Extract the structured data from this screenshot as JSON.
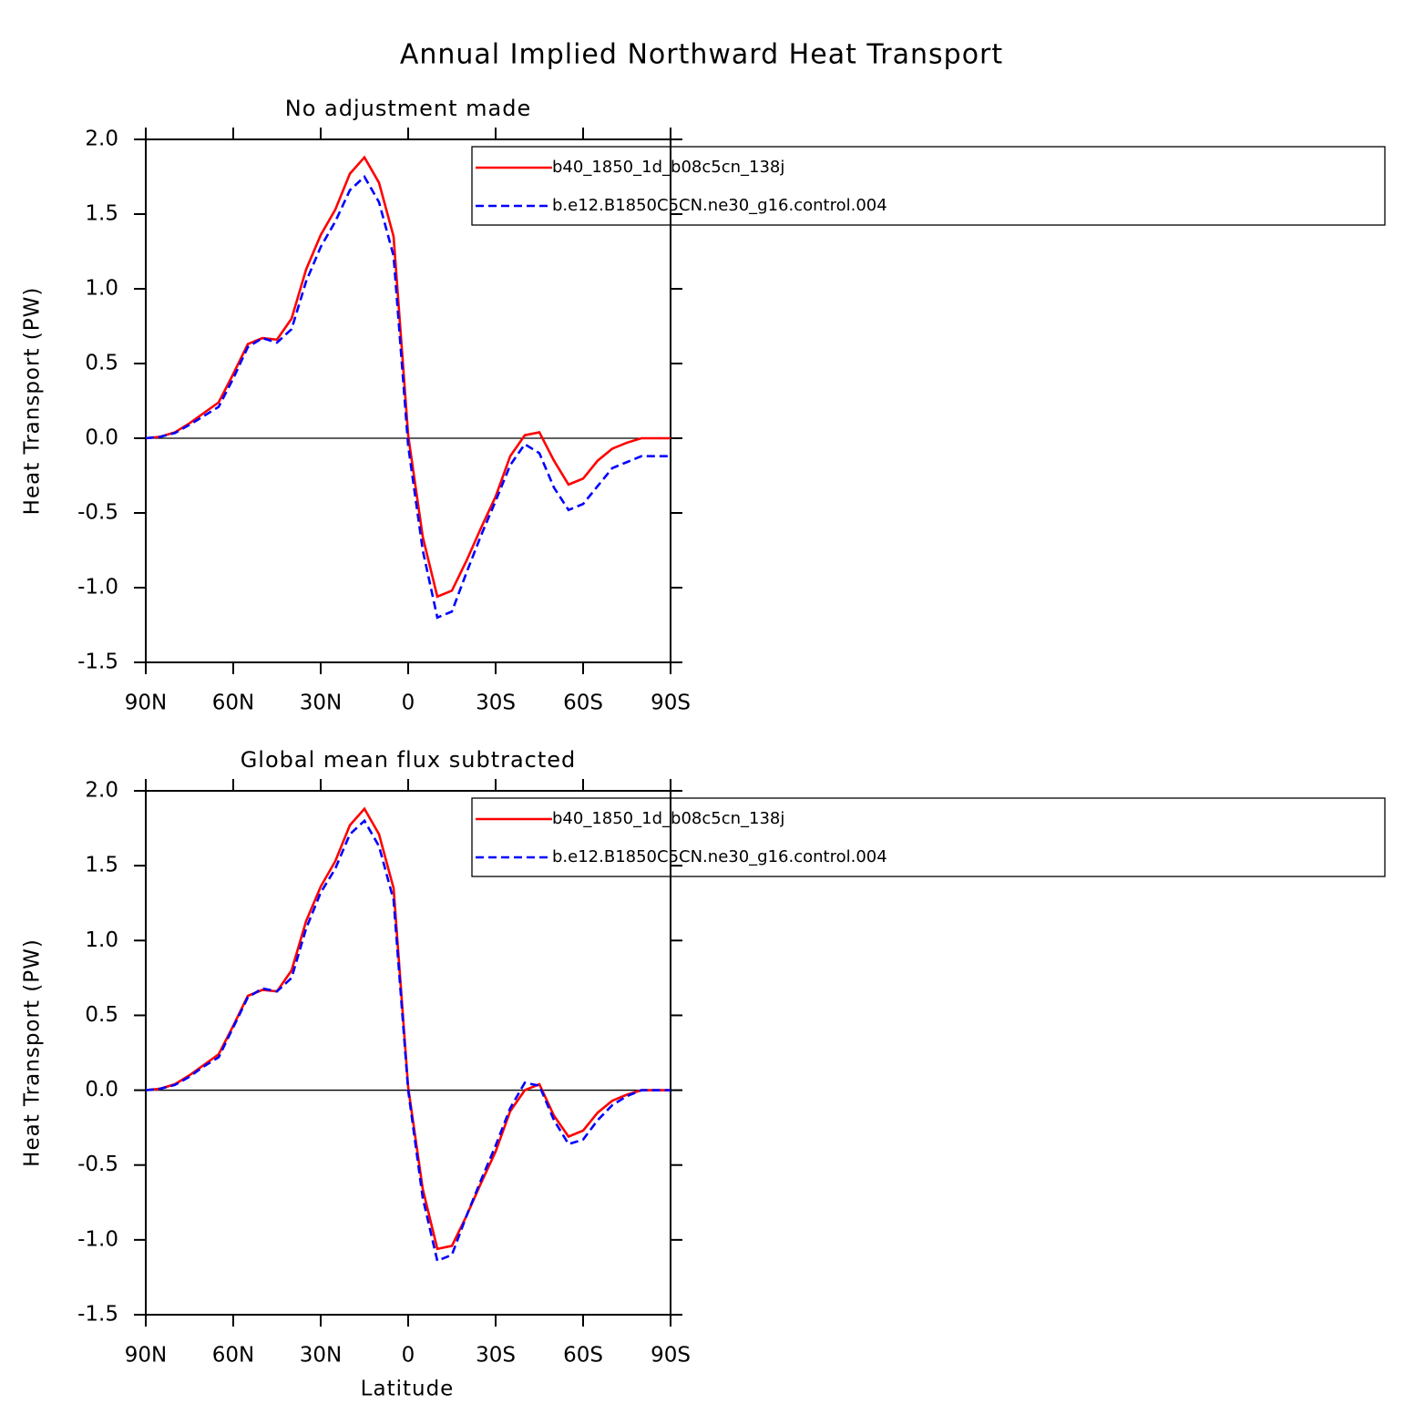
{
  "title": "Annual Implied Northward Heat Transport",
  "chart_data": [
    {
      "type": "line",
      "title": "No adjustment made",
      "ylabel": "Heat Transport (PW)",
      "x": [
        90,
        85,
        80,
        75,
        70,
        65,
        60,
        55,
        50,
        45,
        40,
        35,
        30,
        25,
        20,
        15,
        10,
        5,
        0,
        -5,
        -10,
        -15,
        -20,
        -25,
        -30,
        -35,
        -40,
        -45,
        -50,
        -55,
        -60,
        -65,
        -70,
        -75,
        -80,
        -85,
        -90
      ],
      "xlim": [
        90,
        -90
      ],
      "xticks": [
        {
          "value": 90,
          "label": "90N"
        },
        {
          "value": 60,
          "label": "60N"
        },
        {
          "value": 30,
          "label": "30N"
        },
        0,
        {
          "value": -30,
          "label": "30S"
        },
        {
          "value": -60,
          "label": "60S"
        },
        {
          "value": -90,
          "label": "90S"
        }
      ],
      "ylim": [
        -1.5,
        2.0
      ],
      "yticks": [
        {
          "value": 2,
          "label": "2.0"
        },
        1.5,
        {
          "value": 1,
          "label": "1.0"
        },
        0.5,
        {
          "value": 0,
          "label": "0.0"
        },
        -0.5,
        {
          "value": -1,
          "label": "-1.0"
        },
        -1.5
      ],
      "zero_line": true,
      "series": [
        {
          "name": "b40_1850_1d_b08c5cn_138j",
          "color": "#ff0000",
          "dash": "solid",
          "values": [
            0,
            0.01,
            0.04,
            0.1,
            0.17,
            0.24,
            0.43,
            0.63,
            0.67,
            0.66,
            0.8,
            1.13,
            1.36,
            1.53,
            1.77,
            1.88,
            1.71,
            1.35,
            0.02,
            -0.66,
            -1.06,
            -1.02,
            -0.82,
            -0.6,
            -0.39,
            -0.12,
            0.02,
            0.04,
            -0.15,
            -0.31,
            -0.27,
            -0.15,
            -0.07,
            -0.03,
            0,
            0,
            0
          ]
        },
        {
          "name": "b.e12.B1850C5CN.ne30_g16.control.004",
          "color": "#0000ff",
          "dash": "dashed",
          "values": [
            0,
            0.01,
            0.035,
            0.09,
            0.15,
            0.21,
            0.4,
            0.61,
            0.67,
            0.64,
            0.73,
            1.05,
            1.28,
            1.45,
            1.66,
            1.75,
            1.58,
            1.22,
            -0.05,
            -0.75,
            -1.2,
            -1.16,
            -0.9,
            -0.65,
            -0.42,
            -0.18,
            -0.04,
            -0.1,
            -0.33,
            -0.48,
            -0.44,
            -0.32,
            -0.2,
            -0.16,
            -0.12,
            -0.12,
            -0.12
          ]
        }
      ]
    },
    {
      "type": "line",
      "title": "Global mean flux subtracted",
      "xlabel": "Latitude",
      "ylabel": "Heat Transport (PW)",
      "x": [
        90,
        85,
        80,
        75,
        70,
        65,
        60,
        55,
        50,
        45,
        40,
        35,
        30,
        25,
        20,
        15,
        10,
        5,
        0,
        -5,
        -10,
        -15,
        -20,
        -25,
        -30,
        -35,
        -40,
        -45,
        -50,
        -55,
        -60,
        -65,
        -70,
        -75,
        -80,
        -85,
        -90
      ],
      "xlim": [
        90,
        -90
      ],
      "xticks": [
        {
          "value": 90,
          "label": "90N"
        },
        {
          "value": 60,
          "label": "60N"
        },
        {
          "value": 30,
          "label": "30N"
        },
        0,
        {
          "value": -30,
          "label": "30S"
        },
        {
          "value": -60,
          "label": "60S"
        },
        {
          "value": -90,
          "label": "90S"
        }
      ],
      "ylim": [
        -1.5,
        2.0
      ],
      "yticks": [
        {
          "value": 2,
          "label": "2.0"
        },
        1.5,
        {
          "value": 1,
          "label": "1.0"
        },
        0.5,
        {
          "value": 0,
          "label": "0.0"
        },
        -0.5,
        {
          "value": -1,
          "label": "-1.0"
        },
        -1.5
      ],
      "zero_line": true,
      "series": [
        {
          "name": "b40_1850_1d_b08c5cn_138j",
          "color": "#ff0000",
          "dash": "solid",
          "values": [
            0,
            0.01,
            0.04,
            0.1,
            0.17,
            0.24,
            0.43,
            0.63,
            0.67,
            0.66,
            0.8,
            1.13,
            1.36,
            1.53,
            1.77,
            1.88,
            1.71,
            1.35,
            0.02,
            -0.66,
            -1.06,
            -1.04,
            -0.84,
            -0.62,
            -0.41,
            -0.14,
            0.0,
            0.04,
            -0.17,
            -0.31,
            -0.27,
            -0.15,
            -0.07,
            -0.03,
            0,
            0,
            0
          ]
        },
        {
          "name": "b.e12.B1850C5CN.ne30_g16.control.004",
          "color": "#0000ff",
          "dash": "dashed",
          "values": [
            0,
            0.01,
            0.035,
            0.09,
            0.16,
            0.22,
            0.42,
            0.62,
            0.68,
            0.66,
            0.75,
            1.08,
            1.32,
            1.48,
            1.71,
            1.8,
            1.63,
            1.27,
            0.0,
            -0.72,
            -1.14,
            -1.1,
            -0.84,
            -0.6,
            -0.37,
            -0.12,
            0.05,
            0.03,
            -0.2,
            -0.36,
            -0.33,
            -0.2,
            -0.1,
            -0.04,
            0,
            0,
            0
          ]
        }
      ]
    }
  ]
}
